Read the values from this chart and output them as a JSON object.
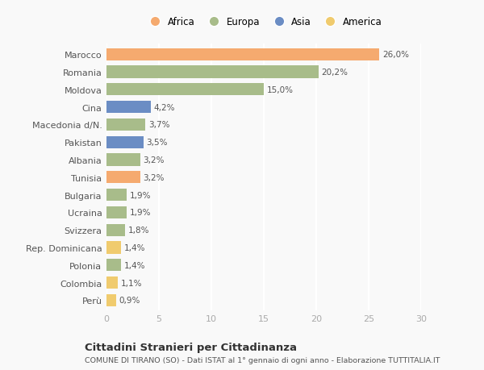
{
  "categories": [
    "Marocco",
    "Romania",
    "Moldova",
    "Cina",
    "Macedonia d/N.",
    "Pakistan",
    "Albania",
    "Tunisia",
    "Bulgaria",
    "Ucraina",
    "Svizzera",
    "Rep. Dominicana",
    "Polonia",
    "Colombia",
    "Perù"
  ],
  "values": [
    26.0,
    20.2,
    15.0,
    4.2,
    3.7,
    3.5,
    3.2,
    3.2,
    1.9,
    1.9,
    1.8,
    1.4,
    1.4,
    1.1,
    0.9
  ],
  "labels": [
    "26,0%",
    "20,2%",
    "15,0%",
    "4,2%",
    "3,7%",
    "3,5%",
    "3,2%",
    "3,2%",
    "1,9%",
    "1,9%",
    "1,8%",
    "1,4%",
    "1,4%",
    "1,1%",
    "0,9%"
  ],
  "continents": [
    "Africa",
    "Europa",
    "Europa",
    "Asia",
    "Europa",
    "Asia",
    "Europa",
    "Africa",
    "Europa",
    "Europa",
    "Europa",
    "America",
    "Europa",
    "America",
    "America"
  ],
  "colors": {
    "Africa": "#F5AA6F",
    "Europa": "#A8BC8A",
    "Asia": "#6B8DC4",
    "America": "#F0CB6E"
  },
  "xlim": [
    0,
    30
  ],
  "xticks": [
    0,
    5,
    10,
    15,
    20,
    25,
    30
  ],
  "title": "Cittadini Stranieri per Cittadinanza",
  "subtitle": "COMUNE DI TIRANO (SO) - Dati ISTAT al 1° gennaio di ogni anno - Elaborazione TUTTITALIA.IT",
  "background_color": "#f9f9f9",
  "grid_color": "#ffffff",
  "bar_height": 0.7,
  "legend_order": [
    "Africa",
    "Europa",
    "Asia",
    "America"
  ]
}
